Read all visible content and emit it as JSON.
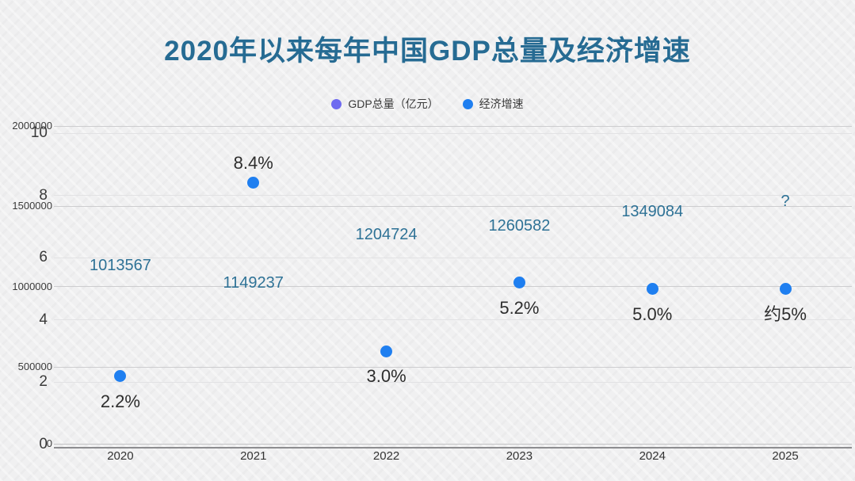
{
  "chart_data": {
    "type": "scatter",
    "title": "2020年以来每年中国GDP总量及经济增速",
    "categories": [
      "2020",
      "2021",
      "2022",
      "2023",
      "2024",
      "2025"
    ],
    "series": [
      {
        "name": "GDP总量（亿元）",
        "color": "#6e6af0",
        "axis": "gdp",
        "marker_visible": false,
        "values": [
          1013567,
          1149237,
          1204724,
          1260582,
          1349084,
          null
        ],
        "labels": [
          "1013567",
          "1149237",
          "1204724",
          "1260582",
          "1349084",
          "?"
        ],
        "label_color": "#2e7296",
        "label_side": [
          "above",
          "below",
          "above",
          "above",
          "above",
          "above"
        ],
        "label_y_override": [
          null,
          null,
          null,
          null,
          null,
          254
        ]
      },
      {
        "name": "经济增速",
        "color": "#1f7ff0",
        "axis": "pct",
        "marker_visible": true,
        "values": [
          2.2,
          8.4,
          3.0,
          5.2,
          5.0,
          5.0
        ],
        "labels": [
          "2.2%",
          "8.4%",
          "3.0%",
          "5.2%",
          "5.0%",
          "约5%"
        ],
        "label_color": "#2d2d2d",
        "label_side": [
          "below",
          "above",
          "below",
          "below",
          "below",
          "below"
        ],
        "label_y_override": [
          null,
          null,
          null,
          null,
          null,
          null
        ]
      }
    ],
    "axes": {
      "gdp": {
        "min": 0,
        "max": 2000000,
        "tick_values": [
          0,
          500000,
          1000000,
          1500000,
          2000000
        ],
        "tick_labels": [
          "0",
          "500000",
          "1000000",
          "1500000",
          "2000000"
        ],
        "position": "left"
      },
      "pct": {
        "min": 0,
        "max": 10,
        "tick_values": [
          0,
          2,
          4,
          6,
          8,
          10
        ],
        "tick_labels": [
          "0",
          "2",
          "4",
          "6",
          "8",
          "10"
        ],
        "position": "left"
      }
    },
    "grid": true,
    "legend_position": "top-center"
  }
}
